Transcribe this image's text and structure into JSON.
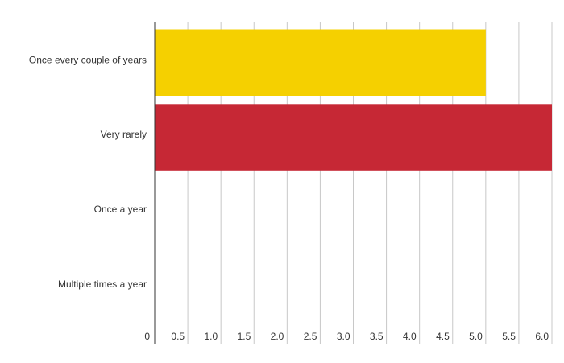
{
  "chart_data": {
    "type": "bar",
    "orientation": "horizontal",
    "categories": [
      "Once every couple of years",
      "Very rarely",
      "Once a year",
      "Multiple times a year"
    ],
    "values": [
      5.0,
      6.0,
      0,
      0
    ],
    "colors": [
      "#F5D000",
      "#C62835",
      "#F5D000",
      "#C62835"
    ],
    "x_ticks": [
      "0",
      "0.5",
      "1.0",
      "1.5",
      "2.0",
      "2.5",
      "3.0",
      "3.5",
      "4.0",
      "4.5",
      "5.0",
      "5.5",
      "6.0"
    ],
    "xlim": [
      0,
      6.0
    ],
    "title": "",
    "xlabel": "",
    "ylabel": "",
    "grid": "vertical",
    "legend": "none"
  }
}
